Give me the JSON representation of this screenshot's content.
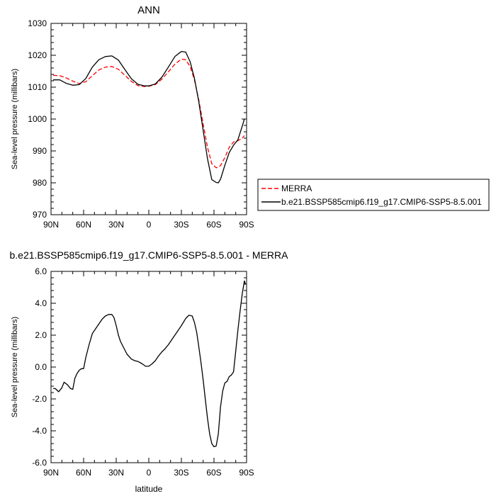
{
  "chart_data": [
    {
      "type": "line",
      "title": "ANN",
      "xlabel": "",
      "ylabel": "Sea-level pressure (millibars)",
      "x_ticks": [
        {
          "value": -90,
          "label": "90N"
        },
        {
          "value": -60,
          "label": "60N"
        },
        {
          "value": -30,
          "label": "30N"
        },
        {
          "value": 0,
          "label": "0"
        },
        {
          "value": 30,
          "label": "30S"
        },
        {
          "value": 60,
          "label": "60S"
        },
        {
          "value": 90,
          "label": "90S"
        }
      ],
      "y_ticks": [
        970,
        980,
        990,
        1000,
        1010,
        1020,
        1030
      ],
      "xlim": [
        -90,
        90
      ],
      "ylim": [
        970,
        1030
      ],
      "grid": false,
      "legend_position": "right",
      "series": [
        {
          "name": "MERRA",
          "color": "#ff0000",
          "style": "dashed",
          "x": [
            -88,
            -82,
            -76,
            -70,
            -64,
            -58,
            -52,
            -46,
            -40,
            -34,
            -28,
            -22,
            -16,
            -10,
            -4,
            0,
            6,
            12,
            18,
            24,
            30,
            34,
            38,
            42,
            46,
            50,
            54,
            58,
            62,
            64,
            66,
            70,
            74,
            78,
            82,
            86,
            88
          ],
          "y": [
            1013.7,
            1013.6,
            1012.9,
            1011.9,
            1011.1,
            1011.7,
            1013.6,
            1015.4,
            1016.3,
            1016.5,
            1015.6,
            1013.7,
            1011.8,
            1010.5,
            1010.2,
            1010.3,
            1010.8,
            1012.5,
            1014.8,
            1017.2,
            1018.8,
            1018.6,
            1016.5,
            1012.3,
            1006.0,
            998.5,
            991.2,
            986.0,
            984.7,
            984.9,
            985.4,
            987.9,
            991.1,
            992.8,
            993.2,
            994.0,
            994.8
          ]
        },
        {
          "name": "b.e21.BSSP585cmip6.f19_g17.CMIP6-SSP5-8.5.001",
          "color": "#000000",
          "style": "solid",
          "x": [
            -88,
            -82,
            -76,
            -70,
            -64,
            -58,
            -52,
            -46,
            -40,
            -34,
            -28,
            -22,
            -16,
            -10,
            -4,
            0,
            6,
            12,
            18,
            24,
            30,
            34,
            38,
            42,
            46,
            50,
            54,
            58,
            62,
            64,
            66,
            70,
            74,
            78,
            82,
            86,
            88
          ],
          "y": [
            1012.3,
            1012.3,
            1011.2,
            1010.6,
            1010.8,
            1012.7,
            1016.3,
            1018.6,
            1019.6,
            1019.8,
            1018.5,
            1015.5,
            1012.6,
            1010.9,
            1010.4,
            1010.4,
            1011.0,
            1013.1,
            1016.3,
            1019.6,
            1021.2,
            1021.0,
            1018.0,
            1012.8,
            1005.5,
            996.5,
            987.6,
            981.0,
            980.1,
            980.0,
            981.1,
            985.5,
            989.5,
            991.8,
            993.5,
            997.8,
            1000.0
          ]
        }
      ]
    },
    {
      "type": "line",
      "title": "b.e21.BSSP585cmip6.f19_g17.CMIP6-SSP5-8.5.001 - MERRA",
      "xlabel": "latitude",
      "ylabel": "Sea-level pressure (millibars)",
      "x_ticks": [
        {
          "value": -90,
          "label": "90N"
        },
        {
          "value": -60,
          "label": "60N"
        },
        {
          "value": -30,
          "label": "30N"
        },
        {
          "value": 0,
          "label": "0"
        },
        {
          "value": 30,
          "label": "30S"
        },
        {
          "value": 60,
          "label": "60S"
        },
        {
          "value": 90,
          "label": "90S"
        }
      ],
      "y_ticks": [
        -6.0,
        -4.0,
        -2.0,
        0.0,
        2.0,
        4.0,
        6.0
      ],
      "y_tick_labels": [
        "-6.0",
        "-4.0",
        "-2.0",
        "0.0",
        "2.0",
        "4.0",
        "6.0"
      ],
      "xlim": [
        -90,
        90
      ],
      "ylim": [
        -6,
        6
      ],
      "grid": false,
      "series": [
        {
          "color": "#000000",
          "style": "solid",
          "x": [
            -88,
            -86,
            -83,
            -80,
            -78,
            -75,
            -72,
            -70,
            -68,
            -66,
            -64,
            -62,
            -60,
            -58,
            -55,
            -52,
            -49,
            -46,
            -43,
            -40,
            -37,
            -34,
            -32,
            -30,
            -28,
            -26,
            -23,
            -20,
            -16,
            -13,
            -10,
            -6,
            -3,
            0,
            3,
            6,
            9,
            12,
            15,
            18,
            22,
            26,
            30,
            34,
            37,
            40,
            42,
            44,
            46,
            48,
            50,
            52,
            54,
            56,
            58,
            60,
            62,
            64,
            66,
            68,
            70,
            72,
            74,
            76,
            78,
            80,
            82,
            84,
            86,
            88,
            89
          ],
          "y": [
            -1.35,
            -1.35,
            -1.55,
            -1.3,
            -0.95,
            -1.1,
            -1.35,
            -1.4,
            -0.7,
            -0.4,
            -0.2,
            -0.1,
            -0.1,
            0.6,
            1.4,
            2.1,
            2.4,
            2.7,
            3.0,
            3.2,
            3.3,
            3.3,
            3.1,
            2.6,
            2.0,
            1.6,
            1.2,
            0.8,
            0.5,
            0.4,
            0.35,
            0.2,
            0.05,
            0.05,
            0.2,
            0.4,
            0.7,
            0.95,
            1.15,
            1.4,
            1.8,
            2.2,
            2.6,
            3.05,
            3.25,
            3.2,
            2.8,
            2.2,
            1.3,
            0.3,
            -0.8,
            -2.0,
            -3.2,
            -4.2,
            -4.8,
            -5.0,
            -4.95,
            -4.2,
            -2.5,
            -1.5,
            -1.0,
            -0.9,
            -0.6,
            -0.5,
            -0.3,
            1.0,
            2.3,
            3.5,
            4.6,
            5.4,
            5.2
          ]
        }
      ]
    }
  ]
}
